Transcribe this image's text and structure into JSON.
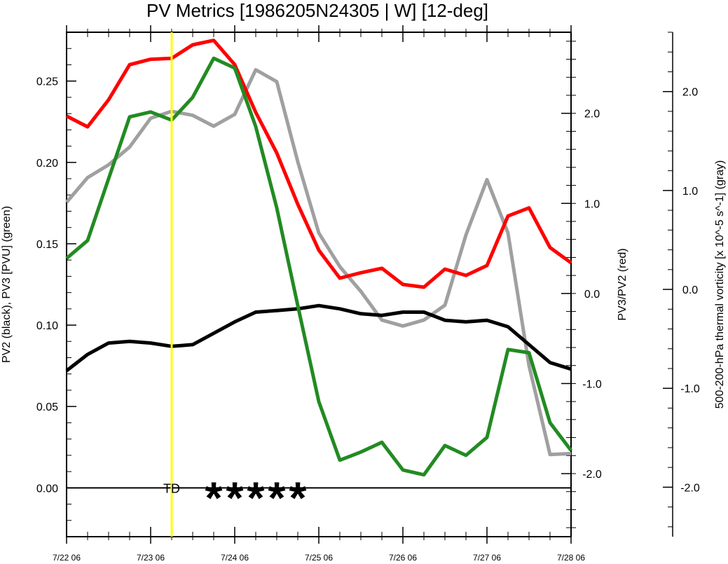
{
  "chart_data": {
    "type": "line",
    "title": "PV Metrics [1986205N24305 | W] [12-deg]",
    "ylabel_left": "PV2 (black), PV3 [PVU] (green)",
    "ylabel_right1": "PV3/PV2 (red)",
    "ylabel_right2": "500-200-hPa thermal vorticity [x 10^-5 s^-1] (gray)",
    "x_ticks": [
      0,
      1,
      2,
      3,
      4,
      5,
      6
    ],
    "x_tick_labels": [
      "7/22 06",
      "7/23 06",
      "7/24 06",
      "7/25 06",
      "7/26 06",
      "7/27 06",
      "7/28 06"
    ],
    "xlim": [
      0,
      6
    ],
    "left_axis": {
      "ylim": [
        -0.03,
        0.28
      ],
      "ticks": [
        0.0,
        0.05,
        0.1,
        0.15,
        0.2,
        0.25
      ],
      "tick_labels": [
        "0.00",
        "0.05",
        "0.10",
        "0.15",
        "0.20",
        "0.25"
      ],
      "minor_step": 0.01
    },
    "right_axis1": {
      "ylim": [
        -2.7,
        2.9
      ],
      "ticks": [
        -2.0,
        -1.0,
        0.0,
        1.0,
        2.0
      ],
      "tick_labels": [
        "-2.0",
        "-1.0",
        "0.0",
        "1.0",
        "2.0"
      ],
      "minor_step": 0.2
    },
    "right_axis2": {
      "ylim": [
        -2.5,
        2.6
      ],
      "ticks": [
        -2.0,
        -1.0,
        0.0,
        1.0,
        2.0
      ],
      "tick_labels": [
        "-2.0",
        "-1.0",
        "0.0",
        "1.0",
        "2.0"
      ],
      "minor_step": 0.2
    },
    "x": [
      0,
      0.25,
      0.5,
      0.75,
      1.0,
      1.25,
      1.5,
      1.75,
      2.0,
      2.25,
      2.5,
      2.75,
      3.0,
      3.25,
      3.5,
      3.75,
      4.0,
      4.25,
      4.5,
      4.75,
      5.0,
      5.25,
      5.5,
      5.75,
      6.0
    ],
    "series": [
      {
        "axis": "left",
        "color": "#000000",
        "values": [
          0.072,
          0.082,
          0.089,
          0.09,
          0.089,
          0.087,
          0.088,
          0.095,
          0.102,
          0.108,
          0.109,
          0.11,
          0.112,
          0.11,
          0.107,
          0.106,
          0.108,
          0.108,
          0.103,
          0.102,
          0.103,
          0.099,
          0.088,
          0.077,
          0.073
        ]
      },
      {
        "axis": "left",
        "color": "#228b22",
        "values": [
          0.141,
          0.152,
          0.19,
          0.228,
          0.231,
          0.226,
          0.24,
          0.264,
          0.258,
          0.222,
          0.172,
          0.112,
          0.053,
          0.017,
          0.022,
          0.028,
          0.011,
          0.008,
          0.026,
          0.02,
          0.031,
          0.085,
          0.083,
          0.04,
          0.023
        ]
      },
      {
        "axis": "right1",
        "color": "#ff0000",
        "values": [
          1.97,
          1.85,
          2.15,
          2.54,
          2.6,
          2.61,
          2.76,
          2.81,
          2.54,
          2.01,
          1.56,
          0.99,
          0.48,
          0.17,
          0.23,
          0.28,
          0.1,
          0.07,
          0.27,
          0.2,
          0.31,
          0.86,
          0.95,
          0.51,
          0.34
        ]
      },
      {
        "axis": "right2",
        "color": "#a0a0a0",
        "values": [
          0.88,
          1.13,
          1.26,
          1.44,
          1.73,
          1.8,
          1.76,
          1.65,
          1.77,
          2.22,
          2.1,
          1.29,
          0.57,
          0.23,
          -0.02,
          -0.31,
          -0.37,
          -0.31,
          -0.16,
          0.55,
          1.11,
          0.57,
          -0.77,
          -1.67,
          -1.66
        ]
      }
    ],
    "vertical_marker": {
      "x": 1.25,
      "color": "#ffff00",
      "label": "TD"
    },
    "zero_line": {
      "axis": "left",
      "y": 0.0
    },
    "stars": {
      "symbol": "*",
      "x": [
        1.75,
        2.0,
        2.25,
        2.5,
        2.75
      ],
      "y_axis": "left",
      "y": 0.0
    }
  }
}
